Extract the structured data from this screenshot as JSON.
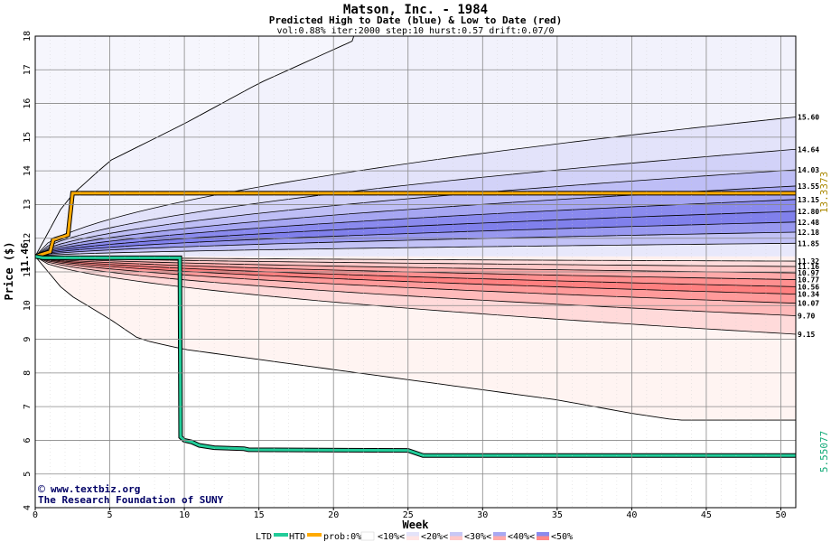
{
  "chart_data": {
    "type": "area",
    "title": "Matson, Inc. - 1984",
    "subtitle": "Predicted High to Date (blue) &  Low to Date (red)",
    "params": "vol:0.88% iter:2000 step:10 hurst:0.57 drift:0.07/0",
    "xlabel": "Week",
    "ylabel": "Price ($)",
    "xlim": [
      0,
      51
    ],
    "ylim": [
      4,
      18
    ],
    "x_ticks": [
      0,
      5,
      10,
      15,
      20,
      25,
      30,
      35,
      40,
      45,
      50
    ],
    "y_ticks": [
      4,
      5,
      6,
      7,
      8,
      9,
      10,
      11,
      12,
      13,
      14,
      15,
      16,
      17,
      18
    ],
    "grid": true,
    "start_price": 11.46,
    "start_label": "11.46",
    "high_bands_end": [
      15.6,
      14.64,
      14.03,
      13.55,
      13.15,
      12.8,
      12.48,
      12.18,
      11.85
    ],
    "low_bands_end": [
      11.32,
      11.16,
      10.97,
      10.77,
      10.56,
      10.34,
      10.07,
      9.7,
      9.15
    ],
    "high_band_labels": [
      "15.60",
      "14.64",
      "14.03",
      "13.55",
      "13.15",
      "12.80",
      "12.48",
      "12.18",
      "11.85"
    ],
    "low_band_labels": [
      "11.32",
      "11.16",
      "10.97",
      "10.77",
      "10.56",
      "10.34",
      "10.07",
      "9.70",
      "9.15"
    ],
    "outer_high": {
      "x": [
        0,
        2,
        5,
        10,
        15,
        20,
        22
      ],
      "y": [
        11.46,
        13.1,
        14.3,
        15.4,
        16.6,
        17.6,
        18
      ]
    },
    "outer_low": {
      "x": [
        0,
        2,
        5,
        7,
        10,
        15,
        20,
        25,
        30,
        35,
        40,
        43,
        51
      ],
      "y": [
        11.46,
        10.4,
        9.6,
        9.0,
        8.7,
        8.4,
        8.1,
        7.8,
        7.5,
        7.2,
        6.8,
        6.6,
        6.6
      ]
    },
    "series": [
      {
        "name": "HTD",
        "color": "#ffaa00",
        "x": [
          0,
          1,
          1.2,
          1.9,
          2.2,
          2.5,
          51
        ],
        "y": [
          11.46,
          11.6,
          11.95,
          12.05,
          12.1,
          13.337,
          13.337
        ],
        "end_label": "13.3373"
      },
      {
        "name": "LTD",
        "color": "#22cc99",
        "x": [
          0,
          0.5,
          9.7,
          9.75,
          10,
          10.5,
          11,
          12,
          14,
          14.3,
          25,
          26,
          51
        ],
        "y": [
          11.46,
          11.42,
          11.42,
          6.1,
          6.0,
          5.95,
          5.85,
          5.78,
          5.75,
          5.72,
          5.7,
          5.55,
          5.55
        ],
        "end_label": "5.55077"
      }
    ],
    "legend": {
      "position": "bottom",
      "items": [
        "LTD",
        "HTD",
        "prob:0%<",
        "<10%<",
        "<20%<",
        "<30%<",
        "<40%<",
        "<50%"
      ],
      "ltd_color": "#22cc99",
      "htd_color": "#ffaa00"
    },
    "watermark": {
      "line1": "www.textbiz.org",
      "line2": "The Research Foundation of SUNY",
      "copyright": "©"
    },
    "colors": {
      "blue_bands": [
        "#f2f2fc",
        "#e3e3fa",
        "#d2d2f8",
        "#bebef6",
        "#a6a6f2",
        "#8a8aee",
        "#8080ec",
        "#9898f0",
        "#c2c2f6",
        "#e8e8fb"
      ],
      "red_bands": [
        "#fff0ee",
        "#ffdcdc",
        "#ffc8c8",
        "#ffaaaa",
        "#ff9090",
        "#ff8080",
        "#ff9a9a",
        "#ffbaba",
        "#ffdada",
        "#fff4f2"
      ],
      "grid": "#888888",
      "band_line": "#000000"
    }
  }
}
